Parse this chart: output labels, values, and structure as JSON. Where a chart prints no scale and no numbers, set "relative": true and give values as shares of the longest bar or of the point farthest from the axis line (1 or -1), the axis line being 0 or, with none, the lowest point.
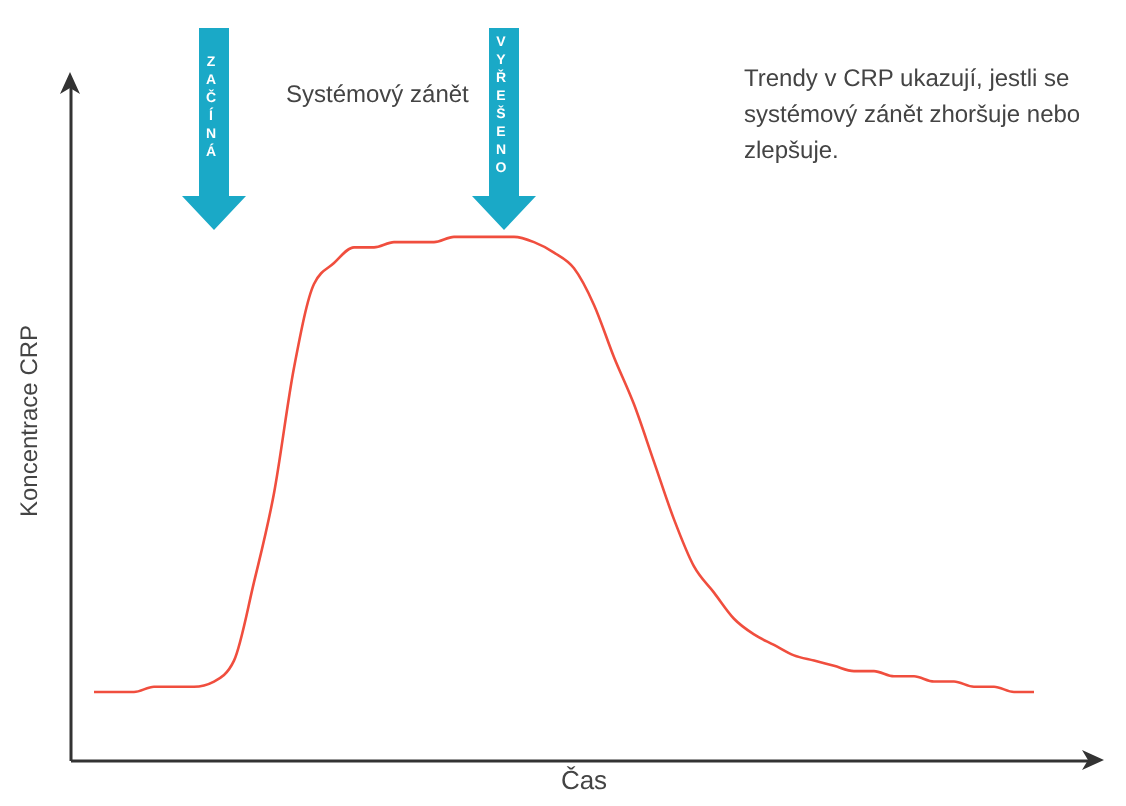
{
  "chart_data": {
    "type": "line",
    "relative": true,
    "xlabel": "Čas",
    "ylabel": "Koncentrace CRP",
    "annotations": [
      "ZAČÍNÁ",
      "Systémový zánět",
      "VYŘEŠENO",
      "Trendy v CRP ukazují, jestli se systémový zánět zhoršuje nebo zlepšuje."
    ],
    "categories": [
      null,
      null,
      null,
      null,
      null,
      null,
      null,
      null,
      null,
      null,
      null,
      null,
      null,
      null,
      null,
      null,
      null,
      null,
      null,
      null,
      null,
      null,
      null,
      null,
      null,
      null,
      null,
      null,
      null,
      null,
      null,
      null,
      null,
      null,
      null,
      null,
      null,
      null,
      null,
      null,
      null,
      null,
      null,
      null,
      null,
      null,
      null,
      null
    ],
    "series": [
      {
        "color": "#f04e3e",
        "values": [
          0.13,
          0.13,
          0.13,
          0.14,
          0.14,
          0.14,
          0.15,
          0.19,
          0.34,
          0.51,
          0.75,
          0.91,
          0.95,
          0.98,
          0.98,
          0.99,
          0.99,
          0.99,
          1.0,
          1.0,
          1.0,
          1.0,
          0.99,
          0.97,
          0.94,
          0.87,
          0.77,
          0.68,
          0.57,
          0.46,
          0.37,
          0.32,
          0.27,
          0.24,
          0.22,
          0.2,
          0.19,
          0.18,
          0.17,
          0.17,
          0.16,
          0.16,
          0.15,
          0.15,
          0.14,
          0.14,
          0.13,
          0.13
        ]
      }
    ]
  }
}
